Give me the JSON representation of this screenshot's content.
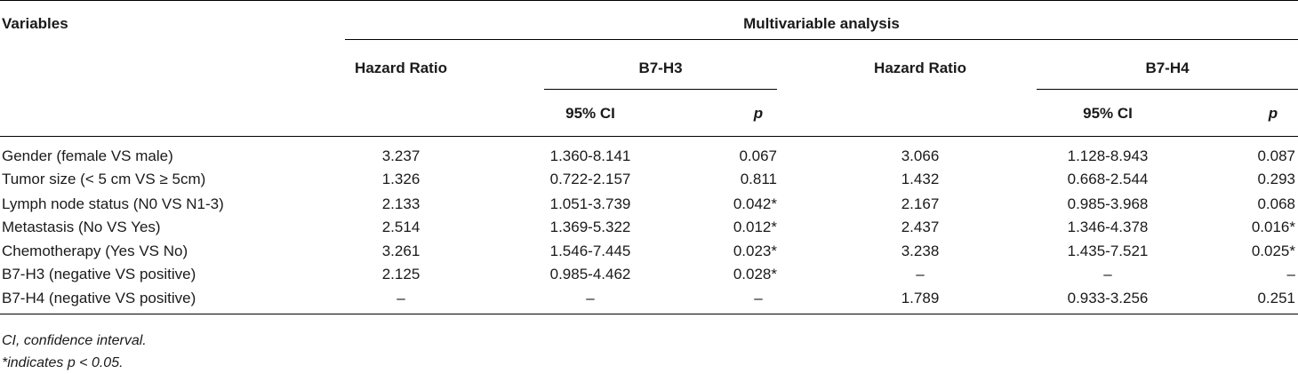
{
  "header": {
    "variables": "Variables",
    "group_title": "Multivariable analysis",
    "b7h3": {
      "hazard_ratio": "Hazard Ratio",
      "marker": "B7-H3",
      "ci": "95% CI",
      "p": "p"
    },
    "b7h4": {
      "hazard_ratio": "Hazard Ratio",
      "marker": "B7-H4",
      "ci": "95% CI",
      "p": "p"
    }
  },
  "rows": [
    {
      "label": "Gender (female VS male)",
      "hr3": "3.237",
      "ci3": "1.360-8.141",
      "p3": "0.067",
      "hr4": "3.066",
      "ci4": "1.128-8.943",
      "p4": "0.087"
    },
    {
      "label": "Tumor size (< 5 cm VS ≥ 5cm)",
      "hr3": "1.326",
      "ci3": "0.722-2.157",
      "p3": "0.811",
      "hr4": "1.432",
      "ci4": "0.668-2.544",
      "p4": "0.293"
    },
    {
      "label": "Lymph node status (N0 VS N1-3)",
      "hr3": "2.133",
      "ci3": "1.051-3.739",
      "p3": "0.042*",
      "hr4": "2.167",
      "ci4": "0.985-3.968",
      "p4": "0.068"
    },
    {
      "label": "Metastasis (No VS Yes)",
      "hr3": "2.514",
      "ci3": "1.369-5.322",
      "p3": "0.012*",
      "hr4": "2.437",
      "ci4": "1.346-4.378",
      "p4": "0.016*"
    },
    {
      "label": "Chemotherapy (Yes VS No)",
      "hr3": "3.261",
      "ci3": "1.546-7.445",
      "p3": "0.023*",
      "hr4": "3.238",
      "ci4": "1.435-7.521",
      "p4": "0.025*"
    },
    {
      "label": "B7-H3 (negative VS positive)",
      "hr3": "2.125",
      "ci3": "0.985-4.462",
      "p3": "0.028*",
      "hr4": "–",
      "ci4": "–",
      "p4": "–"
    },
    {
      "label": "B7-H4 (negative VS positive)",
      "hr3": "–",
      "ci3": "–",
      "p3": "–",
      "hr4": "1.789",
      "ci4": "0.933-3.256",
      "p4": "0.251"
    }
  ],
  "footnotes": {
    "ci": "CI, confidence interval.",
    "significance": "*indicates p < 0.05."
  }
}
